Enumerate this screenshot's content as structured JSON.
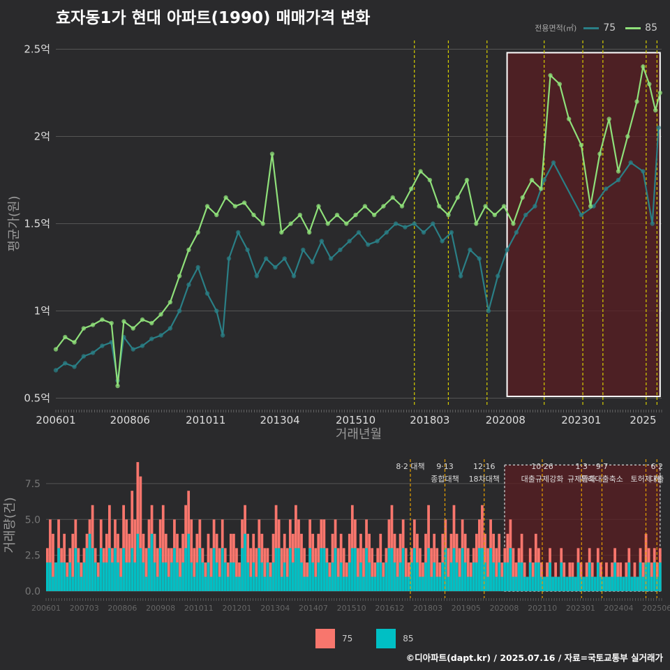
{
  "title": "효자동1가 현대 아파트(1990) 매매가격 변화",
  "footer": "©디아파트(dapt.kr) / 2025.07.16 / 자료=국토교통부 실거래가",
  "colors": {
    "s75_line": "#2a7f86",
    "s85_line": "#8fe07a",
    "bar75": "#f8766d",
    "bar85": "#00bfc4",
    "policy_line_top": "#d8d000",
    "policy_line_bottom": "#e6a000",
    "highlight": "#5a1e22"
  },
  "legend_top": {
    "title": "전용면적(㎡)",
    "items": [
      "75",
      "85"
    ]
  },
  "legend_bottom": {
    "items": [
      "75",
      "85"
    ]
  },
  "chart_data": [
    {
      "type": "line",
      "title": "효자동1가 현대 아파트(1990) 매매가격 변화",
      "xlabel": "거래년월",
      "ylabel": "평균가(원)",
      "x_tick_labels": [
        "200601",
        "200806",
        "201011",
        "201304",
        "201510",
        "201803",
        "202008",
        "202301",
        "2025"
      ],
      "y_tick_labels": [
        "0.5억",
        "1억",
        "1.5억",
        "2억",
        "2.5억"
      ],
      "y_ticks": [
        0.5,
        1,
        1.5,
        2,
        2.5
      ],
      "ylim": [
        0.45,
        2.55
      ],
      "xlim": [
        2006.0,
        2025.6
      ],
      "grid": true,
      "legend_position": "top-right",
      "highlight_range": [
        2020.6,
        2025.55
      ],
      "policy_dates": [
        2017.6,
        2018.7,
        2019.95,
        2021.8,
        2023.05,
        2023.7,
        2025.1,
        2025.45
      ],
      "series": [
        {
          "name": "75",
          "points": [
            [
              2006.0,
              0.66
            ],
            [
              2006.3,
              0.7
            ],
            [
              2006.6,
              0.68
            ],
            [
              2006.9,
              0.74
            ],
            [
              2007.2,
              0.76
            ],
            [
              2007.5,
              0.8
            ],
            [
              2007.8,
              0.82
            ],
            [
              2008.0,
              0.6
            ],
            [
              2008.2,
              0.85
            ],
            [
              2008.5,
              0.78
            ],
            [
              2008.8,
              0.8
            ],
            [
              2009.1,
              0.84
            ],
            [
              2009.4,
              0.86
            ],
            [
              2009.7,
              0.9
            ],
            [
              2010.0,
              1.0
            ],
            [
              2010.3,
              1.15
            ],
            [
              2010.6,
              1.25
            ],
            [
              2010.9,
              1.1
            ],
            [
              2011.2,
              1.0
            ],
            [
              2011.4,
              0.86
            ],
            [
              2011.6,
              1.3
            ],
            [
              2011.9,
              1.45
            ],
            [
              2012.2,
              1.35
            ],
            [
              2012.5,
              1.2
            ],
            [
              2012.8,
              1.3
            ],
            [
              2013.1,
              1.25
            ],
            [
              2013.4,
              1.3
            ],
            [
              2013.7,
              1.2
            ],
            [
              2014.0,
              1.35
            ],
            [
              2014.3,
              1.28
            ],
            [
              2014.6,
              1.4
            ],
            [
              2014.9,
              1.3
            ],
            [
              2015.2,
              1.35
            ],
            [
              2015.5,
              1.4
            ],
            [
              2015.8,
              1.45
            ],
            [
              2016.1,
              1.38
            ],
            [
              2016.4,
              1.4
            ],
            [
              2016.7,
              1.45
            ],
            [
              2017.0,
              1.5
            ],
            [
              2017.3,
              1.48
            ],
            [
              2017.6,
              1.5
            ],
            [
              2017.9,
              1.45
            ],
            [
              2018.2,
              1.5
            ],
            [
              2018.5,
              1.4
            ],
            [
              2018.8,
              1.45
            ],
            [
              2019.1,
              1.2
            ],
            [
              2019.4,
              1.35
            ],
            [
              2019.7,
              1.3
            ],
            [
              2020.0,
              1.0
            ],
            [
              2020.3,
              1.2
            ],
            [
              2020.6,
              1.35
            ],
            [
              2020.9,
              1.45
            ],
            [
              2021.2,
              1.55
            ],
            [
              2021.5,
              1.6
            ],
            [
              2021.8,
              1.75
            ],
            [
              2022.1,
              1.85
            ],
            [
              2023.0,
              1.55
            ],
            [
              2023.4,
              1.6
            ],
            [
              2023.8,
              1.7
            ],
            [
              2024.2,
              1.75
            ],
            [
              2024.6,
              1.85
            ],
            [
              2025.0,
              1.8
            ],
            [
              2025.3,
              1.5
            ],
            [
              2025.5,
              2.05
            ]
          ]
        },
        {
          "name": "85",
          "points": [
            [
              2006.0,
              0.78
            ],
            [
              2006.3,
              0.85
            ],
            [
              2006.6,
              0.82
            ],
            [
              2006.9,
              0.9
            ],
            [
              2007.2,
              0.92
            ],
            [
              2007.5,
              0.95
            ],
            [
              2007.8,
              0.93
            ],
            [
              2008.0,
              0.57
            ],
            [
              2008.2,
              0.94
            ],
            [
              2008.5,
              0.9
            ],
            [
              2008.8,
              0.95
            ],
            [
              2009.1,
              0.93
            ],
            [
              2009.4,
              0.98
            ],
            [
              2009.7,
              1.05
            ],
            [
              2010.0,
              1.2
            ],
            [
              2010.3,
              1.35
            ],
            [
              2010.6,
              1.45
            ],
            [
              2010.9,
              1.6
            ],
            [
              2011.2,
              1.55
            ],
            [
              2011.5,
              1.65
            ],
            [
              2011.8,
              1.6
            ],
            [
              2012.1,
              1.62
            ],
            [
              2012.4,
              1.55
            ],
            [
              2012.7,
              1.5
            ],
            [
              2013.0,
              1.9
            ],
            [
              2013.3,
              1.45
            ],
            [
              2013.6,
              1.5
            ],
            [
              2013.9,
              1.55
            ],
            [
              2014.2,
              1.45
            ],
            [
              2014.5,
              1.6
            ],
            [
              2014.8,
              1.5
            ],
            [
              2015.1,
              1.55
            ],
            [
              2015.4,
              1.5
            ],
            [
              2015.7,
              1.55
            ],
            [
              2016.0,
              1.6
            ],
            [
              2016.3,
              1.55
            ],
            [
              2016.6,
              1.6
            ],
            [
              2016.9,
              1.65
            ],
            [
              2017.2,
              1.6
            ],
            [
              2017.5,
              1.7
            ],
            [
              2017.8,
              1.8
            ],
            [
              2018.1,
              1.75
            ],
            [
              2018.4,
              1.6
            ],
            [
              2018.7,
              1.55
            ],
            [
              2019.0,
              1.65
            ],
            [
              2019.3,
              1.75
            ],
            [
              2019.6,
              1.5
            ],
            [
              2019.9,
              1.6
            ],
            [
              2020.2,
              1.55
            ],
            [
              2020.5,
              1.6
            ],
            [
              2020.8,
              1.5
            ],
            [
              2021.1,
              1.65
            ],
            [
              2021.4,
              1.75
            ],
            [
              2021.7,
              1.7
            ],
            [
              2022.0,
              2.35
            ],
            [
              2022.3,
              2.3
            ],
            [
              2022.6,
              2.1
            ],
            [
              2023.0,
              1.95
            ],
            [
              2023.3,
              1.6
            ],
            [
              2023.6,
              1.9
            ],
            [
              2023.9,
              2.1
            ],
            [
              2024.2,
              1.8
            ],
            [
              2024.5,
              2.0
            ],
            [
              2024.8,
              2.2
            ],
            [
              2025.0,
              2.4
            ],
            [
              2025.2,
              2.3
            ],
            [
              2025.4,
              2.15
            ],
            [
              2025.55,
              2.25
            ]
          ]
        }
      ]
    },
    {
      "type": "bar",
      "xlabel": "",
      "ylabel": "거래량(건)",
      "x_tick_labels": [
        "200601",
        "200703",
        "200806",
        "200908",
        "201011",
        "201201",
        "201304",
        "201407",
        "201510",
        "201612",
        "201803",
        "201905",
        "202008",
        "202110",
        "202301",
        "202404",
        "202506"
      ],
      "y_tick_labels": [
        "0.0",
        "2.5",
        "5.0",
        "7.5"
      ],
      "y_ticks": [
        0,
        2.5,
        5,
        7.5
      ],
      "ylim": [
        0,
        9.2
      ],
      "highlight_range": [
        2020.6,
        2025.55
      ],
      "policy_lines": [
        {
          "date": 2017.6,
          "label1": "8·2 대책",
          "label2": ""
        },
        {
          "date": 2018.7,
          "label1": "9·13",
          "label2": "종합대책"
        },
        {
          "date": 2019.95,
          "label1": "12·16",
          "label2": "18차대책"
        },
        {
          "date": 2021.8,
          "label1": "10·26",
          "label2": "대출규제강화"
        },
        {
          "date": 2023.05,
          "label1": "1·3",
          "label2": "규제완화"
        },
        {
          "date": 2023.7,
          "label1": "9·7",
          "label2": "특례대출축소"
        },
        {
          "date": 2025.1,
          "label1": "",
          "label2": "토허제 해"
        },
        {
          "date": 2025.45,
          "label1": "6·2",
          "label2": "대출"
        }
      ],
      "series": [
        {
          "name": "75",
          "values_note": "monthly counts estimated",
          "values": [
            3,
            5,
            4,
            2,
            5,
            3,
            4,
            2,
            3,
            4,
            5,
            3,
            2,
            3,
            4,
            5,
            6,
            3,
            2,
            5,
            3,
            4,
            6,
            3,
            5,
            4,
            3,
            6,
            5,
            4,
            7,
            5,
            9,
            8,
            4,
            3,
            5,
            6,
            4,
            3,
            5,
            6,
            4,
            3,
            3,
            5,
            4,
            3,
            4,
            6,
            7,
            5,
            3,
            4,
            5,
            3,
            2,
            4,
            3,
            5,
            4,
            3,
            5,
            3,
            2,
            4,
            4,
            3,
            2,
            5,
            6,
            4,
            3,
            4,
            3,
            5,
            4,
            3,
            3,
            2,
            4,
            6,
            5,
            3,
            4,
            3,
            5,
            4,
            6,
            5,
            4,
            3,
            2,
            5,
            4,
            3,
            4,
            5,
            5,
            3,
            2,
            4,
            5,
            3,
            4,
            3,
            2,
            4,
            6,
            5,
            3,
            4,
            3,
            5,
            4,
            3,
            2,
            3,
            4,
            2,
            3,
            5,
            6,
            4,
            3,
            4,
            5,
            3,
            2,
            3,
            5,
            4,
            3,
            2,
            4,
            6,
            3,
            4,
            3,
            2,
            4,
            5,
            3,
            4,
            6,
            4,
            3,
            5,
            4,
            3,
            2,
            3,
            4,
            5,
            6,
            4,
            3,
            5,
            4,
            3,
            4,
            2,
            3,
            4,
            5,
            3,
            2,
            3,
            4,
            2,
            1,
            3,
            2,
            4,
            3,
            2,
            1,
            2,
            3,
            1,
            2,
            1,
            3,
            2,
            1,
            2,
            2,
            1,
            3,
            2,
            1,
            2,
            3,
            2,
            1,
            3,
            2,
            1,
            2,
            1,
            2,
            3,
            2,
            2,
            1,
            2,
            3,
            1,
            2,
            1,
            3,
            2,
            4,
            3,
            2,
            3,
            2,
            3
          ]
        },
        {
          "name": "85",
          "values_note": "monthly counts estimated",
          "values": [
            2,
            2,
            1,
            2,
            3,
            2,
            2,
            1,
            2,
            1,
            3,
            2,
            1,
            2,
            3,
            4,
            3,
            2,
            1,
            3,
            2,
            2,
            3,
            2,
            3,
            2,
            1,
            3,
            2,
            2,
            3,
            2,
            4,
            3,
            2,
            1,
            3,
            4,
            2,
            1,
            3,
            2,
            2,
            1,
            2,
            3,
            2,
            1,
            2,
            3,
            4,
            2,
            1,
            2,
            3,
            2,
            1,
            2,
            1,
            3,
            2,
            1,
            3,
            2,
            1,
            2,
            2,
            1,
            1,
            3,
            4,
            2,
            1,
            2,
            1,
            3,
            2,
            1,
            2,
            1,
            2,
            3,
            3,
            1,
            2,
            1,
            3,
            2,
            3,
            3,
            2,
            1,
            1,
            3,
            2,
            1,
            2,
            3,
            3,
            2,
            1,
            2,
            3,
            1,
            2,
            1,
            1,
            2,
            3,
            3,
            1,
            2,
            1,
            3,
            2,
            1,
            1,
            2,
            2,
            1,
            2,
            3,
            3,
            2,
            1,
            2,
            3,
            1,
            1,
            2,
            3,
            2,
            1,
            1,
            2,
            3,
            1,
            2,
            1,
            1,
            2,
            3,
            1,
            2,
            3,
            2,
            1,
            3,
            2,
            1,
            1,
            2,
            2,
            3,
            3,
            2,
            1,
            3,
            2,
            1,
            2,
            1,
            2,
            2,
            3,
            1,
            1,
            2,
            2,
            1,
            1,
            2,
            1,
            2,
            2,
            1,
            1,
            1,
            2,
            1,
            1,
            1,
            2,
            1,
            1,
            1,
            1,
            1,
            2,
            1,
            1,
            1,
            2,
            1,
            1,
            2,
            1,
            1,
            1,
            1,
            1,
            2,
            1,
            1,
            1,
            1,
            2,
            1,
            1,
            1,
            2,
            1,
            2,
            2,
            1,
            2,
            1,
            2
          ]
        }
      ]
    }
  ]
}
